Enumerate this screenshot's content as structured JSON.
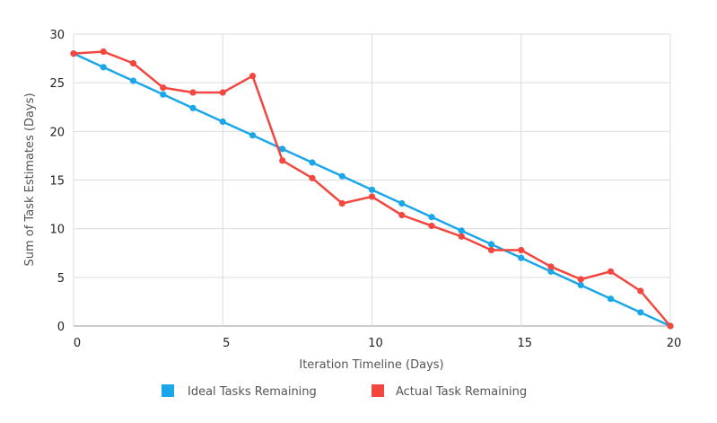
{
  "chart_data": {
    "type": "line",
    "xlabel": "Iteration Timeline (Days)",
    "ylabel": "Sum of Task Estimates (Days)",
    "xlim": [
      0,
      20
    ],
    "ylim": [
      0,
      30
    ],
    "x_ticks": [
      0,
      5,
      10,
      15,
      20
    ],
    "y_ticks": [
      0,
      5,
      10,
      15,
      20,
      25,
      30
    ],
    "grid": true,
    "legend_position": "bottom-center",
    "x": [
      0,
      1,
      2,
      3,
      4,
      5,
      6,
      7,
      8,
      9,
      10,
      11,
      12,
      13,
      14,
      15,
      16,
      17,
      18,
      19,
      20
    ],
    "series": [
      {
        "name": "Ideal Tasks Remaining",
        "color": "#1aa7ea",
        "values": [
          28,
          26.6,
          25.2,
          23.8,
          22.4,
          21,
          19.6,
          18.2,
          16.8,
          15.4,
          14,
          12.6,
          11.2,
          9.8,
          8.4,
          7,
          5.6,
          4.2,
          2.8,
          1.4,
          0
        ]
      },
      {
        "name": "Actual Task Remaining",
        "color": "#f2463f",
        "values": [
          28,
          28.2,
          27,
          24.5,
          24,
          24,
          25.7,
          17,
          15.2,
          12.6,
          13.3,
          11.4,
          10.3,
          9.2,
          7.8,
          7.8,
          6.1,
          4.8,
          5.6,
          3.6,
          0
        ]
      }
    ]
  }
}
